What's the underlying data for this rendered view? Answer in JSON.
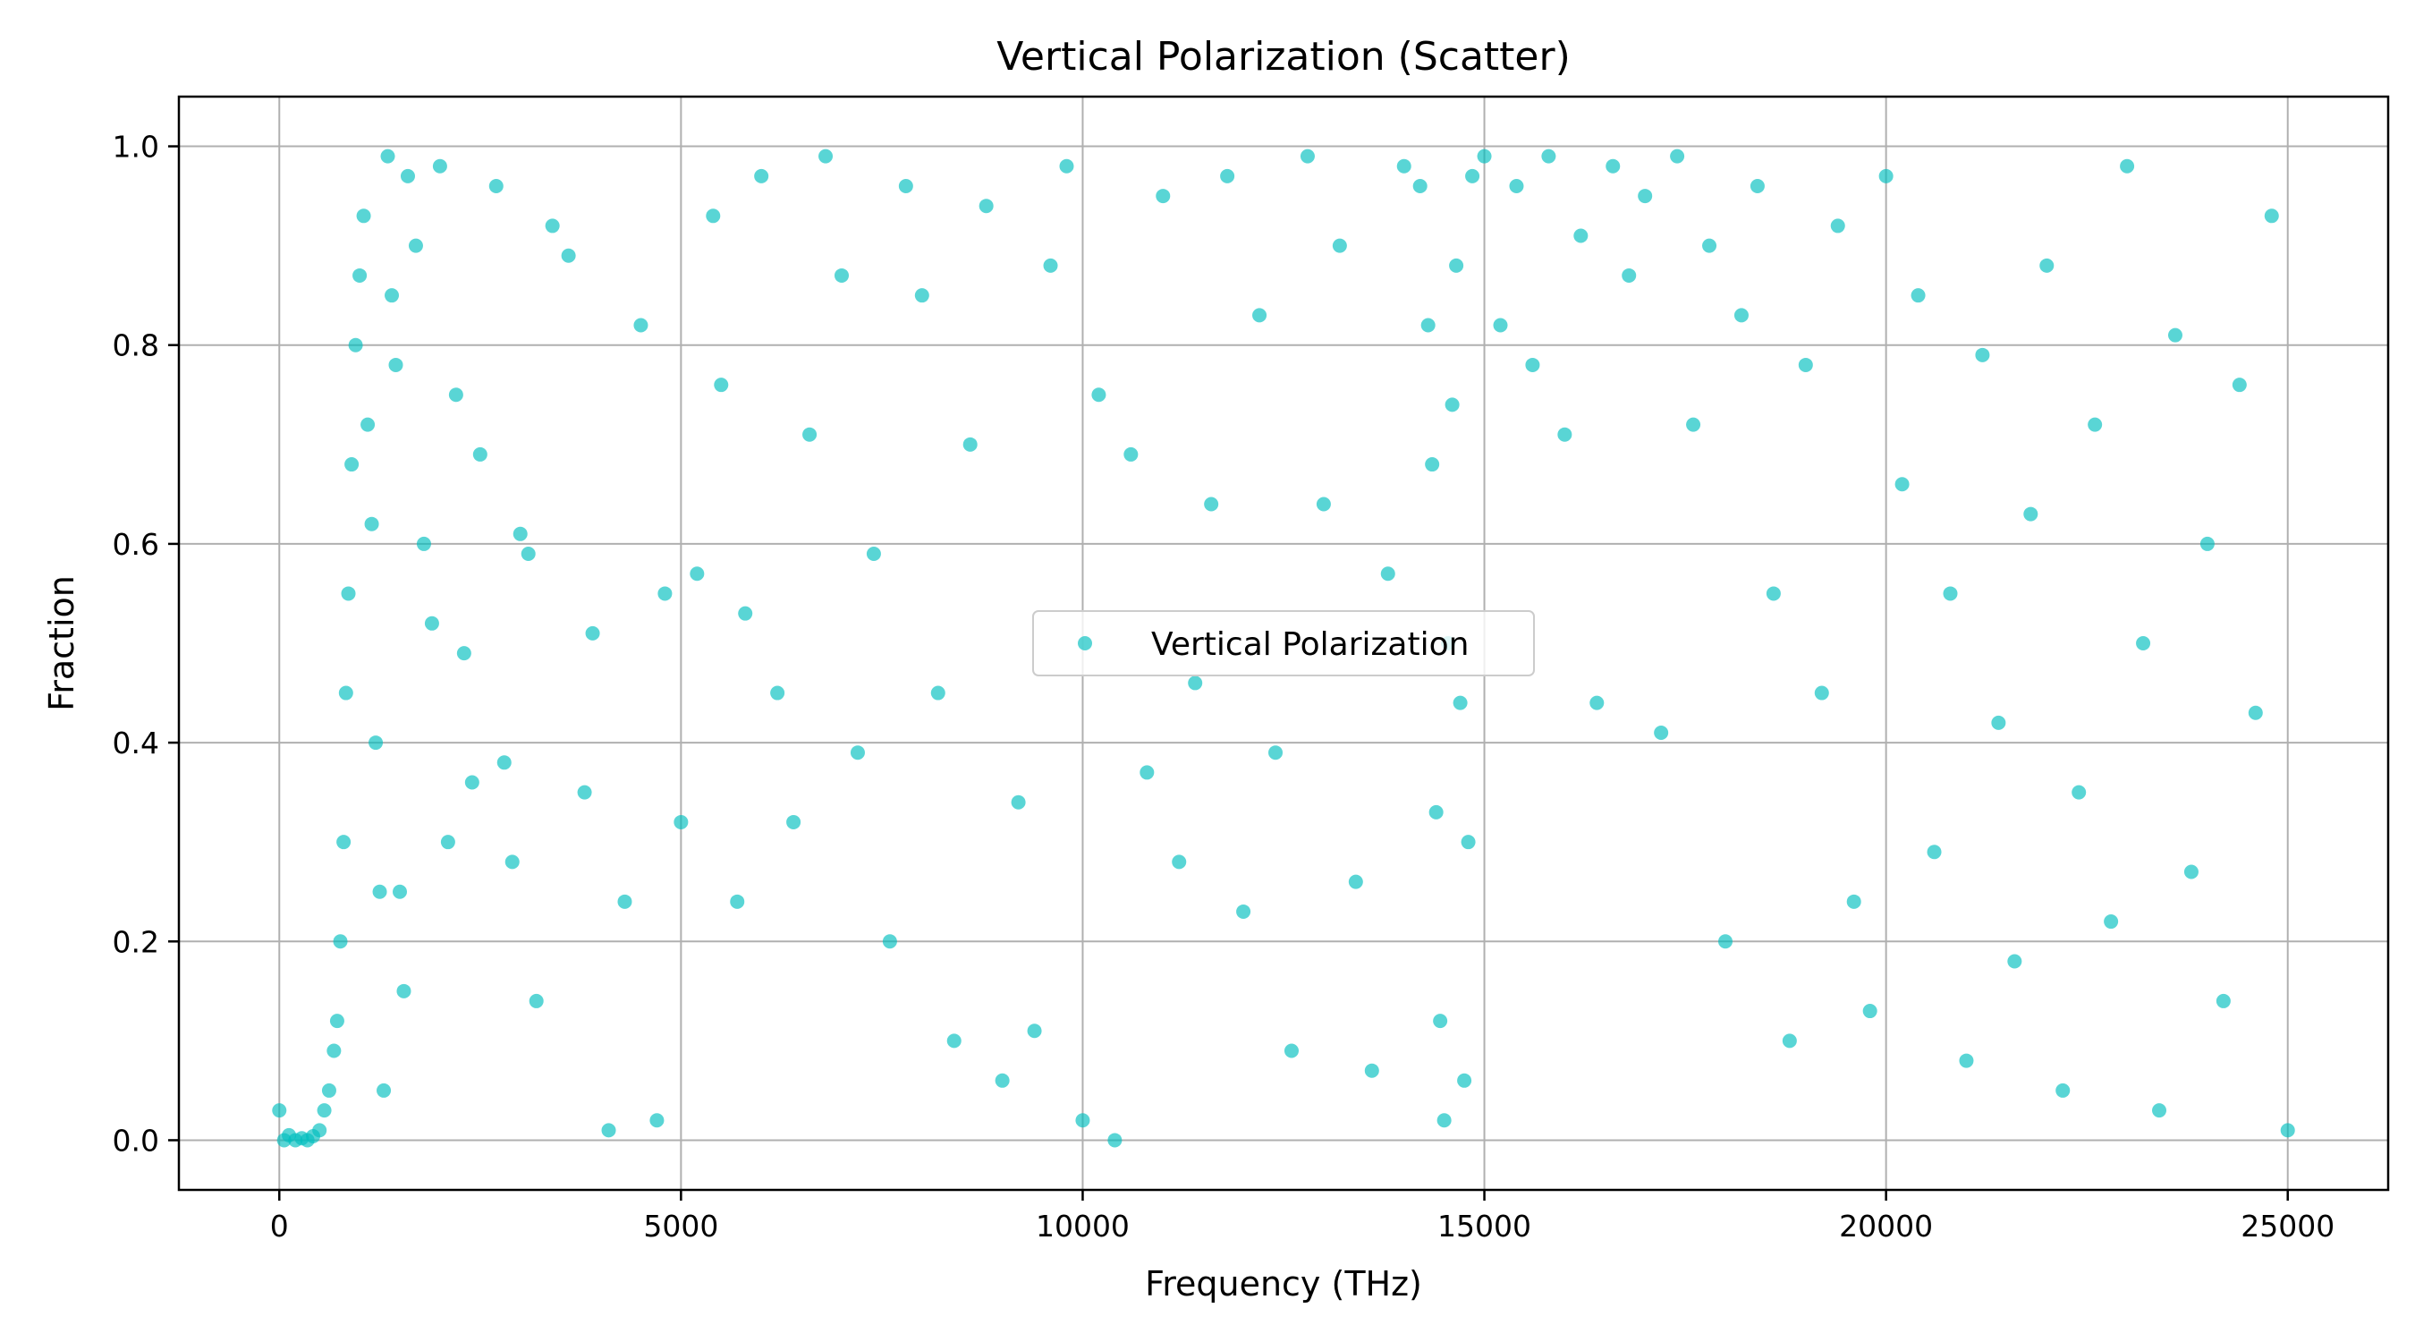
{
  "chart_data": {
    "type": "scatter",
    "title": "Vertical Polarization (Scatter)",
    "xlabel": "Frequency (THz)",
    "ylabel": "Fraction",
    "xlim": [
      -1250,
      26250
    ],
    "ylim": [
      -0.05,
      1.05
    ],
    "xticks": [
      0,
      5000,
      10000,
      15000,
      20000,
      25000
    ],
    "xtick_labels": [
      "0",
      "5000",
      "10000",
      "15000",
      "20000",
      "25000"
    ],
    "yticks": [
      0.0,
      0.2,
      0.4,
      0.6,
      0.8,
      1.0
    ],
    "ytick_labels": [
      "0.0",
      "0.2",
      "0.4",
      "0.6",
      "0.8",
      "1.0"
    ],
    "grid": true,
    "legend_position": "center",
    "series": [
      {
        "name": "Vertical Polarization",
        "color": "#00bfbf",
        "marker": "circle",
        "alpha": 0.65,
        "points": [
          [
            0,
            0.03
          ],
          [
            60,
            0.0
          ],
          [
            120,
            0.005
          ],
          [
            200,
            0.0
          ],
          [
            280,
            0.002
          ],
          [
            350,
            0.0
          ],
          [
            420,
            0.004
          ],
          [
            500,
            0.01
          ],
          [
            560,
            0.03
          ],
          [
            620,
            0.05
          ],
          [
            680,
            0.09
          ],
          [
            720,
            0.12
          ],
          [
            760,
            0.2
          ],
          [
            800,
            0.3
          ],
          [
            830,
            0.45
          ],
          [
            860,
            0.55
          ],
          [
            900,
            0.68
          ],
          [
            950,
            0.8
          ],
          [
            1000,
            0.87
          ],
          [
            1050,
            0.93
          ],
          [
            1100,
            0.72
          ],
          [
            1150,
            0.62
          ],
          [
            1200,
            0.4
          ],
          [
            1250,
            0.25
          ],
          [
            1300,
            0.05
          ],
          [
            1350,
            0.99
          ],
          [
            1400,
            0.85
          ],
          [
            1450,
            0.78
          ],
          [
            1500,
            0.25
          ],
          [
            1550,
            0.15
          ],
          [
            1600,
            0.97
          ],
          [
            1700,
            0.9
          ],
          [
            1800,
            0.6
          ],
          [
            1900,
            0.52
          ],
          [
            2000,
            0.98
          ],
          [
            2100,
            0.3
          ],
          [
            2200,
            0.75
          ],
          [
            2300,
            0.49
          ],
          [
            2400,
            0.36
          ],
          [
            2500,
            0.69
          ],
          [
            2700,
            0.96
          ],
          [
            2800,
            0.38
          ],
          [
            2900,
            0.28
          ],
          [
            3000,
            0.61
          ],
          [
            3100,
            0.59
          ],
          [
            3200,
            0.14
          ],
          [
            3400,
            0.92
          ],
          [
            3600,
            0.89
          ],
          [
            3800,
            0.35
          ],
          [
            3900,
            0.51
          ],
          [
            4100,
            0.01
          ],
          [
            4300,
            0.24
          ],
          [
            4500,
            0.82
          ],
          [
            4700,
            0.02
          ],
          [
            4800,
            0.55
          ],
          [
            5000,
            0.32
          ],
          [
            5200,
            0.57
          ],
          [
            5400,
            0.93
          ],
          [
            5500,
            0.76
          ],
          [
            5700,
            0.24
          ],
          [
            5800,
            0.53
          ],
          [
            6000,
            0.97
          ],
          [
            6200,
            0.45
          ],
          [
            6400,
            0.32
          ],
          [
            6600,
            0.71
          ],
          [
            6800,
            0.99
          ],
          [
            7000,
            0.87
          ],
          [
            7200,
            0.39
          ],
          [
            7400,
            0.59
          ],
          [
            7600,
            0.2
          ],
          [
            7800,
            0.96
          ],
          [
            8000,
            0.85
          ],
          [
            8200,
            0.45
          ],
          [
            8400,
            0.1
          ],
          [
            8600,
            0.7
          ],
          [
            8800,
            0.94
          ],
          [
            9000,
            0.06
          ],
          [
            9200,
            0.34
          ],
          [
            9400,
            0.11
          ],
          [
            9600,
            0.88
          ],
          [
            9800,
            0.98
          ],
          [
            10000,
            0.02
          ],
          [
            10200,
            0.75
          ],
          [
            10400,
            0.0
          ],
          [
            10600,
            0.69
          ],
          [
            10800,
            0.37
          ],
          [
            11000,
            0.95
          ],
          [
            11200,
            0.28
          ],
          [
            11400,
            0.46
          ],
          [
            11600,
            0.64
          ],
          [
            11800,
            0.97
          ],
          [
            12000,
            0.23
          ],
          [
            12200,
            0.83
          ],
          [
            12400,
            0.39
          ],
          [
            12600,
            0.09
          ],
          [
            12800,
            0.99
          ],
          [
            13000,
            0.64
          ],
          [
            13200,
            0.9
          ],
          [
            13400,
            0.26
          ],
          [
            13600,
            0.07
          ],
          [
            13800,
            0.57
          ],
          [
            14000,
            0.98
          ],
          [
            14200,
            0.96
          ],
          [
            14300,
            0.82
          ],
          [
            14350,
            0.68
          ],
          [
            14400,
            0.33
          ],
          [
            14450,
            0.12
          ],
          [
            14500,
            0.02
          ],
          [
            14550,
            0.5
          ],
          [
            14600,
            0.74
          ],
          [
            14650,
            0.88
          ],
          [
            14700,
            0.44
          ],
          [
            14750,
            0.06
          ],
          [
            14800,
            0.3
          ],
          [
            14850,
            0.97
          ],
          [
            15000,
            0.99
          ],
          [
            15200,
            0.82
          ],
          [
            15400,
            0.96
          ],
          [
            15600,
            0.78
          ],
          [
            15800,
            0.99
          ],
          [
            16000,
            0.71
          ],
          [
            16200,
            0.91
          ],
          [
            16400,
            0.44
          ],
          [
            16600,
            0.98
          ],
          [
            16800,
            0.87
          ],
          [
            17000,
            0.95
          ],
          [
            17200,
            0.41
          ],
          [
            17400,
            0.99
          ],
          [
            17600,
            0.72
          ],
          [
            17800,
            0.9
          ],
          [
            18000,
            0.2
          ],
          [
            18200,
            0.83
          ],
          [
            18400,
            0.96
          ],
          [
            18600,
            0.55
          ],
          [
            18800,
            0.1
          ],
          [
            19000,
            0.78
          ],
          [
            19200,
            0.45
          ],
          [
            19400,
            0.92
          ],
          [
            19600,
            0.24
          ],
          [
            19800,
            0.13
          ],
          [
            20000,
            0.97
          ],
          [
            20200,
            0.66
          ],
          [
            20400,
            0.85
          ],
          [
            20600,
            0.29
          ],
          [
            20800,
            0.55
          ],
          [
            21000,
            0.08
          ],
          [
            21200,
            0.79
          ],
          [
            21400,
            0.42
          ],
          [
            21600,
            0.18
          ],
          [
            21800,
            0.63
          ],
          [
            22000,
            0.88
          ],
          [
            22200,
            0.05
          ],
          [
            22400,
            0.35
          ],
          [
            22600,
            0.72
          ],
          [
            22800,
            0.22
          ],
          [
            23000,
            0.98
          ],
          [
            23200,
            0.5
          ],
          [
            23400,
            0.03
          ],
          [
            23600,
            0.81
          ],
          [
            23800,
            0.27
          ],
          [
            24000,
            0.6
          ],
          [
            24200,
            0.14
          ],
          [
            24400,
            0.76
          ],
          [
            24600,
            0.43
          ],
          [
            24800,
            0.93
          ],
          [
            25000,
            0.01
          ]
        ]
      }
    ]
  }
}
